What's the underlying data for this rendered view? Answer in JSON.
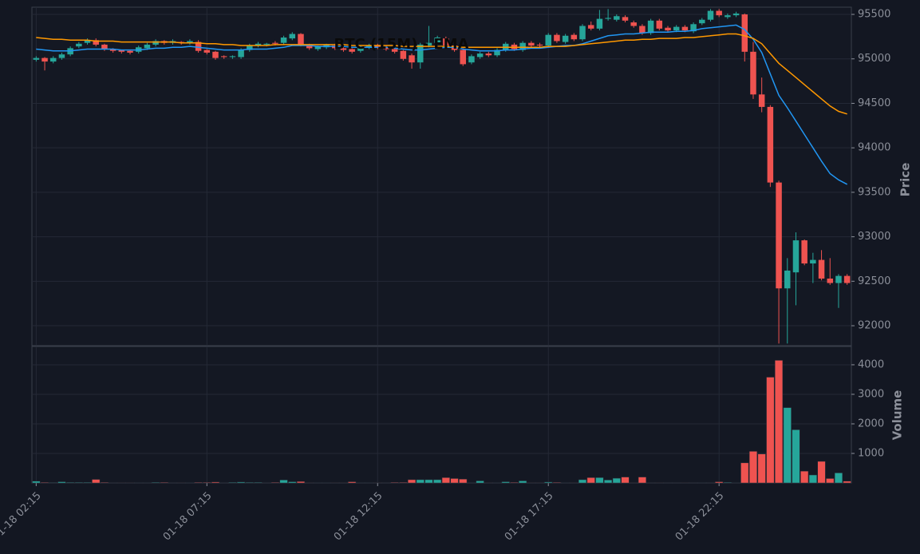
{
  "chart_data": {
    "type": "candlestick",
    "title": "BTC (15M) - EMA",
    "ylabel": "Price",
    "volume_label": "Volume",
    "up_color": "#26a69a",
    "down_color": "#ef5350",
    "grid": true,
    "categories": [
      "01-18 02:15",
      null,
      null,
      null,
      null,
      null,
      null,
      null,
      null,
      null,
      null,
      null,
      null,
      null,
      null,
      null,
      null,
      null,
      null,
      null,
      "01-18 07:15",
      null,
      null,
      null,
      null,
      null,
      null,
      null,
      null,
      null,
      null,
      null,
      null,
      null,
      null,
      null,
      null,
      null,
      null,
      null,
      "01-18 12:15",
      null,
      null,
      null,
      null,
      null,
      null,
      null,
      null,
      null,
      null,
      null,
      null,
      null,
      null,
      null,
      null,
      null,
      null,
      null,
      "01-18 17:15",
      null,
      null,
      null,
      null,
      null,
      null,
      null,
      null,
      null,
      null,
      null,
      null,
      null,
      null,
      null,
      null,
      null,
      null,
      null,
      "01-18 22:15",
      null,
      null,
      null,
      null,
      null,
      null,
      null,
      null,
      null,
      null,
      null,
      null,
      null,
      null,
      null
    ],
    "open": [
      94990,
      95010,
      94970,
      95010,
      95050,
      95140,
      95180,
      95210,
      95160,
      95110,
      95100,
      95090,
      95080,
      95120,
      95160,
      95200,
      95180,
      95190,
      95180,
      95190,
      95100,
      95080,
      95030,
      95020,
      95020,
      95100,
      95150,
      95160,
      95180,
      95180,
      95230,
      95280,
      95160,
      95110,
      95130,
      95150,
      95120,
      95110,
      95090,
      95130,
      95150,
      95130,
      95110,
      95090,
      95040,
      94960,
      95150,
      95180,
      95230,
      95150,
      95100,
      94960,
      95020,
      95060,
      95040,
      95100,
      95160,
      95100,
      95180,
      95160,
      95150,
      95270,
      95190,
      95270,
      95220,
      95380,
      95340,
      95450,
      95440,
      95470,
      95410,
      95370,
      95290,
      95430,
      95350,
      95320,
      95360,
      95310,
      95400,
      95440,
      95540,
      95470,
      95490,
      95500,
      95080,
      94600,
      94460,
      93610,
      92420,
      92600,
      92960,
      92700,
      92740,
      92530,
      92480,
      92560
    ],
    "high": [
      95030,
      95020,
      95030,
      95070,
      95140,
      95190,
      95230,
      95230,
      95170,
      95120,
      95100,
      95100,
      95150,
      95180,
      95220,
      95210,
      95220,
      95200,
      95220,
      95210,
      95110,
      95090,
      95040,
      95040,
      95120,
      95170,
      95190,
      95180,
      95200,
      95260,
      95300,
      95290,
      95170,
      95150,
      95170,
      95170,
      95130,
      95120,
      95150,
      95170,
      95170,
      95150,
      95120,
      95100,
      95060,
      95180,
      95370,
      95260,
      95250,
      95170,
      95120,
      95050,
      95080,
      95080,
      95120,
      95190,
      95180,
      95200,
      95200,
      95180,
      95290,
      95290,
      95280,
      95290,
      95390,
      95420,
      95550,
      95560,
      95500,
      95490,
      95430,
      95390,
      95450,
      95450,
      95370,
      95380,
      95380,
      95410,
      95460,
      95560,
      95560,
      95510,
      95530,
      95510,
      95190,
      94790,
      94480,
      93630,
      92760,
      93050,
      92970,
      92820,
      92850,
      92760,
      92580,
      92580
    ],
    "low": [
      94970,
      94870,
      94950,
      94990,
      95030,
      95120,
      95160,
      95140,
      95090,
      95070,
      95060,
      95050,
      95060,
      95100,
      95140,
      95160,
      95160,
      95160,
      95160,
      95070,
      95050,
      94990,
      95000,
      95000,
      95000,
      95080,
      95130,
      95140,
      95150,
      95160,
      95210,
      95140,
      95100,
      95090,
      95110,
      95100,
      95080,
      95060,
      95070,
      95110,
      95110,
      95090,
      95060,
      94980,
      94890,
      94890,
      95130,
      95160,
      95130,
      95080,
      94920,
      94940,
      95000,
      95020,
      95020,
      95080,
      95090,
      95080,
      95130,
      95130,
      95130,
      95180,
      95170,
      95200,
      95200,
      95320,
      95320,
      95430,
      95420,
      95410,
      95350,
      95270,
      95270,
      95320,
      95300,
      95300,
      95300,
      95290,
      95380,
      95420,
      95470,
      95450,
      95470,
      94970,
      94550,
      94400,
      93560,
      91800,
      91800,
      92230,
      92680,
      92480,
      92510,
      92460,
      92200,
      92460
    ],
    "close": [
      95010,
      94970,
      95010,
      95050,
      95120,
      95170,
      95210,
      95160,
      95110,
      95090,
      95080,
      95070,
      95130,
      95160,
      95200,
      95180,
      95200,
      95180,
      95200,
      95090,
      95070,
      95010,
      95020,
      95030,
      95100,
      95150,
      95170,
      95170,
      95170,
      95240,
      95280,
      95160,
      95120,
      95140,
      95160,
      95120,
      95100,
      95080,
      95130,
      95150,
      95130,
      95110,
      95080,
      95000,
      94960,
      95160,
      95180,
      95240,
      95150,
      95100,
      94940,
      95030,
      95060,
      95040,
      95100,
      95170,
      95110,
      95180,
      95150,
      95150,
      95270,
      95200,
      95260,
      95220,
      95370,
      95340,
      95450,
      95460,
      95480,
      95430,
      95370,
      95290,
      95430,
      95340,
      95320,
      95360,
      95320,
      95390,
      95440,
      95540,
      95490,
      95490,
      95510,
      95080,
      94600,
      94460,
      93610,
      92420,
      92620,
      92960,
      92700,
      92740,
      92530,
      92480,
      92560,
      92480
    ],
    "volume": [
      60,
      20,
      15,
      40,
      20,
      20,
      20,
      120,
      20,
      10,
      5,
      5,
      5,
      5,
      20,
      20,
      10,
      5,
      5,
      20,
      20,
      30,
      10,
      20,
      30,
      20,
      20,
      10,
      20,
      100,
      40,
      50,
      5,
      5,
      5,
      5,
      5,
      40,
      5,
      5,
      5,
      10,
      20,
      20,
      110,
      110,
      110,
      110,
      180,
      150,
      130,
      5,
      70,
      5,
      5,
      40,
      20,
      70,
      5,
      5,
      30,
      20,
      5,
      5,
      110,
      180,
      180,
      100,
      160,
      200,
      5,
      200,
      10,
      5,
      10,
      10,
      5,
      10,
      5,
      10,
      40,
      20,
      5,
      680,
      1070,
      980,
      3580,
      4150,
      2550,
      1800,
      400,
      270,
      730,
      150,
      340,
      60
    ],
    "ema": [
      {
        "color": "#2196f3",
        "values": [
          95110,
          95100,
          95090,
          95090,
          95090,
          95100,
          95110,
          95110,
          95110,
          95110,
          95100,
          95100,
          95100,
          95110,
          95120,
          95120,
          95130,
          95130,
          95140,
          95130,
          95120,
          95110,
          95100,
          95100,
          95100,
          95110,
          95110,
          95110,
          95120,
          95130,
          95150,
          95150,
          95150,
          95140,
          95140,
          95140,
          95140,
          95130,
          95130,
          95130,
          95130,
          95130,
          95120,
          95110,
          95100,
          95100,
          95110,
          95120,
          95130,
          95130,
          95110,
          95100,
          95090,
          95090,
          95090,
          95100,
          95100,
          95110,
          95120,
          95120,
          95130,
          95140,
          95150,
          95150,
          95170,
          95200,
          95230,
          95260,
          95270,
          95280,
          95280,
          95290,
          95300,
          95300,
          95300,
          95310,
          95310,
          95320,
          95340,
          95350,
          95360,
          95370,
          95380,
          95330,
          95220,
          95070,
          94830,
          94590,
          94450,
          94300,
          94150,
          94000,
          93850,
          93710,
          93640,
          93590
        ]
      },
      {
        "color": "#ff9800",
        "values": [
          95240,
          95230,
          95220,
          95220,
          95210,
          95210,
          95210,
          95200,
          95200,
          95200,
          95190,
          95190,
          95190,
          95190,
          95190,
          95190,
          95190,
          95180,
          95180,
          95180,
          95170,
          95170,
          95160,
          95160,
          95150,
          95150,
          95150,
          95150,
          95160,
          95160,
          95160,
          95160,
          95160,
          95160,
          95160,
          95160,
          95160,
          95150,
          95150,
          95150,
          95150,
          95150,
          95150,
          95140,
          95140,
          95140,
          95140,
          95140,
          95140,
          95140,
          95130,
          95130,
          95130,
          95130,
          95130,
          95130,
          95130,
          95130,
          95130,
          95130,
          95140,
          95140,
          95140,
          95150,
          95160,
          95170,
          95180,
          95190,
          95200,
          95210,
          95210,
          95220,
          95220,
          95230,
          95230,
          95230,
          95240,
          95240,
          95250,
          95260,
          95270,
          95280,
          95280,
          95260,
          95230,
          95170,
          95060,
          94950,
          94870,
          94790,
          94710,
          94630,
          94550,
          94470,
          94410,
          94380
        ]
      }
    ],
    "ylim": [
      91776,
      95581
    ],
    "yticks": [
      92000,
      92500,
      93000,
      93500,
      94000,
      94500,
      95000,
      95500
    ],
    "volume_ylim": [
      0,
      4620
    ],
    "volume_yticks": [
      1000,
      2000,
      3000,
      4000
    ]
  }
}
